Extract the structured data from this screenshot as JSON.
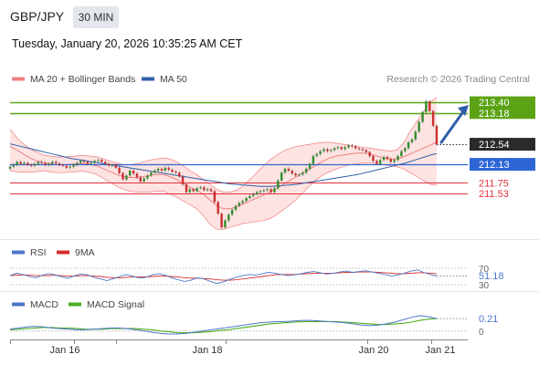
{
  "header": {
    "symbol": "GBP/JPY",
    "timeframe": "30 MIN",
    "datetime": "Tuesday, January 20, 2026 10:35:25 AM CET"
  },
  "main_legend": {
    "bollinger": "MA 20 + Bollinger Bands",
    "ma50": "MA 50",
    "credit": "Research © 2026 Trading Central"
  },
  "colors": {
    "bollinger": "#f08080",
    "bollinger_fill": "#fde3e1",
    "ma50": "#2f5fa8",
    "resistance": "#5ba315",
    "pivot": "#2e66d6",
    "support": "#e0313d",
    "candle_up": "#2f8f2f",
    "candle_down": "#cc2e2e",
    "rsi": "#4e77c9",
    "rsi_ma": "#d42b2b",
    "macd": "#4e77c9",
    "macd_signal": "#4caf1f",
    "arrow": "#2f5fa8"
  },
  "chart_data": [
    {
      "type": "candlestick",
      "x_ticks": [
        "Jan 16",
        "Jan 18",
        "Jan 20",
        "Jan 21"
      ],
      "ylim": [
        210.6,
        213.7
      ],
      "levels": [
        {
          "value": 213.4,
          "label": "213.40",
          "kind": "resistance"
        },
        {
          "value": 213.18,
          "label": "213.18",
          "kind": "resistance"
        },
        {
          "value": 212.54,
          "label": "212.54",
          "kind": "last"
        },
        {
          "value": 212.13,
          "label": "212.13",
          "kind": "pivot"
        },
        {
          "value": 211.75,
          "label": "211.75",
          "kind": "support"
        },
        {
          "value": 211.53,
          "label": "211.53",
          "kind": "support"
        }
      ],
      "close": [
        212.08,
        212.12,
        212.18,
        212.14,
        212.16,
        212.12,
        212.1,
        212.14,
        212.18,
        212.16,
        212.12,
        212.14,
        212.18,
        212.15,
        212.12,
        212.1,
        212.06,
        212.08,
        212.12,
        212.16,
        212.2,
        212.18,
        212.14,
        212.16,
        212.2,
        212.22,
        212.18,
        212.14,
        212.1,
        212.12,
        212.06,
        211.95,
        211.82,
        211.9,
        212.0,
        211.94,
        211.86,
        211.78,
        211.84,
        211.9,
        211.96,
        212.0,
        212.04,
        212.0,
        212.06,
        212.02,
        211.98,
        211.96,
        211.88,
        211.72,
        211.56,
        211.62,
        211.58,
        211.64,
        211.66,
        211.6,
        211.62,
        211.58,
        211.36,
        211.12,
        210.84,
        210.98,
        211.1,
        211.2,
        211.28,
        211.34,
        211.38,
        211.44,
        211.48,
        211.52,
        211.56,
        211.58,
        211.6,
        211.62,
        211.56,
        211.64,
        211.8,
        211.96,
        212.04,
        212.0,
        211.94,
        211.9,
        211.92,
        211.96,
        212.04,
        212.14,
        212.3,
        212.34,
        212.4,
        212.44,
        212.4,
        212.42,
        212.46,
        212.48,
        212.44,
        212.48,
        212.52,
        212.5,
        212.46,
        212.44,
        212.42,
        212.38,
        212.3,
        212.2,
        212.14,
        212.22,
        212.28,
        212.24,
        212.18,
        212.22,
        212.3,
        212.4,
        212.46,
        212.58,
        212.64,
        212.8,
        213.0,
        213.2,
        213.42,
        213.22,
        212.92,
        212.54
      ],
      "ma50": [
        212.55,
        212.52,
        212.49,
        212.46,
        212.43,
        212.4,
        212.37,
        212.34,
        212.31,
        212.28,
        212.25,
        212.23,
        212.21,
        212.19,
        212.17,
        212.15,
        212.13,
        212.11,
        212.09,
        212.07,
        212.05,
        212.03,
        212.01,
        211.99,
        211.97,
        211.95,
        211.93,
        211.91,
        211.89,
        211.87,
        211.85,
        211.83,
        211.81,
        211.79,
        211.77,
        211.75,
        211.73,
        211.72,
        211.71,
        211.7,
        211.69,
        211.68,
        211.68,
        211.68,
        211.69,
        211.7,
        211.71,
        211.72,
        211.74,
        211.76,
        211.78,
        211.8,
        211.82,
        211.84,
        211.86,
        211.88,
        211.9,
        211.92,
        211.95,
        211.98,
        212.01,
        212.04,
        212.07,
        212.1,
        212.13,
        212.16,
        212.2,
        212.24,
        212.28,
        212.32,
        212.35
      ],
      "bollinger_mid": [
        212.5,
        212.42,
        212.34,
        212.26,
        212.2,
        212.16,
        212.14,
        212.12,
        212.12,
        212.13,
        212.14,
        212.15,
        212.13,
        212.1,
        212.04,
        211.98,
        211.92,
        211.88,
        211.86,
        211.86,
        211.88,
        211.9,
        211.92,
        211.92,
        211.88,
        211.82,
        211.74,
        211.66,
        211.6,
        211.52,
        211.4,
        211.28,
        211.22,
        211.22,
        211.26,
        211.32,
        211.38,
        211.44,
        211.5,
        211.56,
        211.64,
        211.72,
        211.8,
        211.88,
        211.96,
        212.04,
        212.12,
        212.2,
        212.26,
        212.3,
        212.32,
        212.34,
        212.36,
        212.36,
        212.34,
        212.3,
        212.26,
        212.24,
        212.24,
        212.28,
        212.34,
        212.4,
        212.46,
        212.52,
        212.58
      ],
      "bollinger_upper": [
        212.85,
        212.68,
        212.55,
        212.45,
        212.38,
        212.32,
        212.3,
        212.28,
        212.28,
        212.29,
        212.3,
        212.31,
        212.3,
        212.28,
        212.24,
        212.2,
        212.16,
        212.12,
        212.12,
        212.14,
        212.18,
        212.22,
        212.24,
        212.26,
        212.24,
        212.18,
        212.1,
        212.0,
        211.92,
        211.82,
        211.72,
        211.62,
        211.56,
        211.56,
        211.6,
        211.7,
        211.82,
        211.96,
        212.1,
        212.22,
        212.32,
        212.4,
        212.46,
        212.5,
        212.52,
        212.54,
        212.56,
        212.58,
        212.58,
        212.56,
        212.54,
        212.52,
        212.5,
        212.48,
        212.46,
        212.44,
        212.42,
        212.4,
        212.42,
        212.56,
        212.8,
        213.0,
        213.2,
        213.4,
        213.5
      ],
      "bollinger_lower": [
        212.0,
        211.98,
        211.97,
        211.97,
        211.98,
        212.0,
        211.98,
        211.96,
        211.96,
        211.97,
        211.98,
        211.99,
        211.96,
        211.92,
        211.84,
        211.76,
        211.68,
        211.62,
        211.58,
        211.56,
        211.56,
        211.56,
        211.58,
        211.58,
        211.52,
        211.46,
        211.38,
        211.3,
        211.22,
        211.08,
        210.9,
        210.8,
        210.8,
        210.84,
        210.88,
        210.92,
        210.94,
        210.96,
        210.98,
        211.02,
        211.1,
        211.2,
        211.3,
        211.42,
        211.56,
        211.7,
        211.82,
        211.92,
        211.98,
        212.04,
        212.08,
        212.12,
        212.14,
        212.16,
        212.16,
        212.14,
        212.12,
        212.1,
        212.08,
        212.04,
        211.96,
        211.88,
        211.8,
        211.72,
        211.7
      ]
    },
    {
      "type": "line",
      "title": "RSI",
      "series": [
        {
          "name": "RSI"
        },
        {
          "name": "9MA"
        }
      ],
      "ylim": [
        30,
        70
      ],
      "ref_lines": [
        70,
        30
      ],
      "tick_labels": [
        "70",
        "30"
      ],
      "last_value": "51.18",
      "rsi": [
        52,
        58,
        55,
        50,
        47,
        53,
        57,
        54,
        49,
        46,
        52,
        56,
        54,
        48,
        44,
        40,
        45,
        50,
        55,
        51,
        46,
        48,
        54,
        57,
        53,
        47,
        42,
        38,
        41,
        47,
        44,
        38,
        33,
        37,
        43,
        48,
        52,
        55,
        53,
        57,
        60,
        58,
        55,
        52,
        54,
        57,
        60,
        62,
        59,
        56,
        58,
        61,
        63,
        60,
        62,
        64,
        61,
        58,
        55,
        51,
        54,
        58,
        63,
        66,
        60,
        55,
        51
      ],
      "rsi_ma": [
        52,
        53,
        54,
        53,
        52,
        52,
        52,
        53,
        52,
        51,
        51,
        52,
        52,
        51,
        50,
        48,
        47,
        47,
        48,
        49,
        49,
        49,
        50,
        51,
        51,
        50,
        49,
        47,
        46,
        46,
        45,
        44,
        42,
        41,
        41,
        42,
        44,
        46,
        48,
        50,
        52,
        54,
        55,
        55,
        55,
        56,
        57,
        58,
        58,
        58,
        58,
        59,
        60,
        60,
        61,
        61,
        61,
        60,
        59,
        58,
        57,
        57,
        58,
        59,
        59,
        58,
        57
      ]
    },
    {
      "type": "line",
      "title": "MACD",
      "series": [
        {
          "name": "MACD"
        },
        {
          "name": "MACD Signal"
        }
      ],
      "ylim": [
        -0.05,
        0.35
      ],
      "tick_labels": [
        "0"
      ],
      "last_value": "0.21",
      "macd": [
        0.03,
        0.05,
        0.07,
        0.08,
        0.07,
        0.05,
        0.04,
        0.03,
        0.02,
        0.02,
        0.03,
        0.04,
        0.05,
        0.05,
        0.04,
        0.02,
        0.0,
        -0.02,
        -0.04,
        -0.05,
        -0.05,
        -0.04,
        -0.02,
        0.0,
        0.02,
        0.04,
        0.06,
        0.08,
        0.1,
        0.12,
        0.14,
        0.15,
        0.16,
        0.16,
        0.17,
        0.18,
        0.18,
        0.17,
        0.16,
        0.15,
        0.14,
        0.12,
        0.1,
        0.09,
        0.1,
        0.12,
        0.15,
        0.19,
        0.23,
        0.26,
        0.24,
        0.21
      ],
      "signal": [
        0.02,
        0.03,
        0.04,
        0.05,
        0.06,
        0.06,
        0.05,
        0.05,
        0.04,
        0.03,
        0.03,
        0.03,
        0.04,
        0.04,
        0.04,
        0.04,
        0.03,
        0.02,
        0.0,
        -0.01,
        -0.03,
        -0.03,
        -0.03,
        -0.02,
        -0.01,
        0.01,
        0.02,
        0.04,
        0.06,
        0.08,
        0.1,
        0.12,
        0.13,
        0.14,
        0.15,
        0.16,
        0.16,
        0.16,
        0.16,
        0.16,
        0.15,
        0.14,
        0.13,
        0.12,
        0.11,
        0.11,
        0.12,
        0.13,
        0.15,
        0.18,
        0.2,
        0.21
      ]
    }
  ]
}
